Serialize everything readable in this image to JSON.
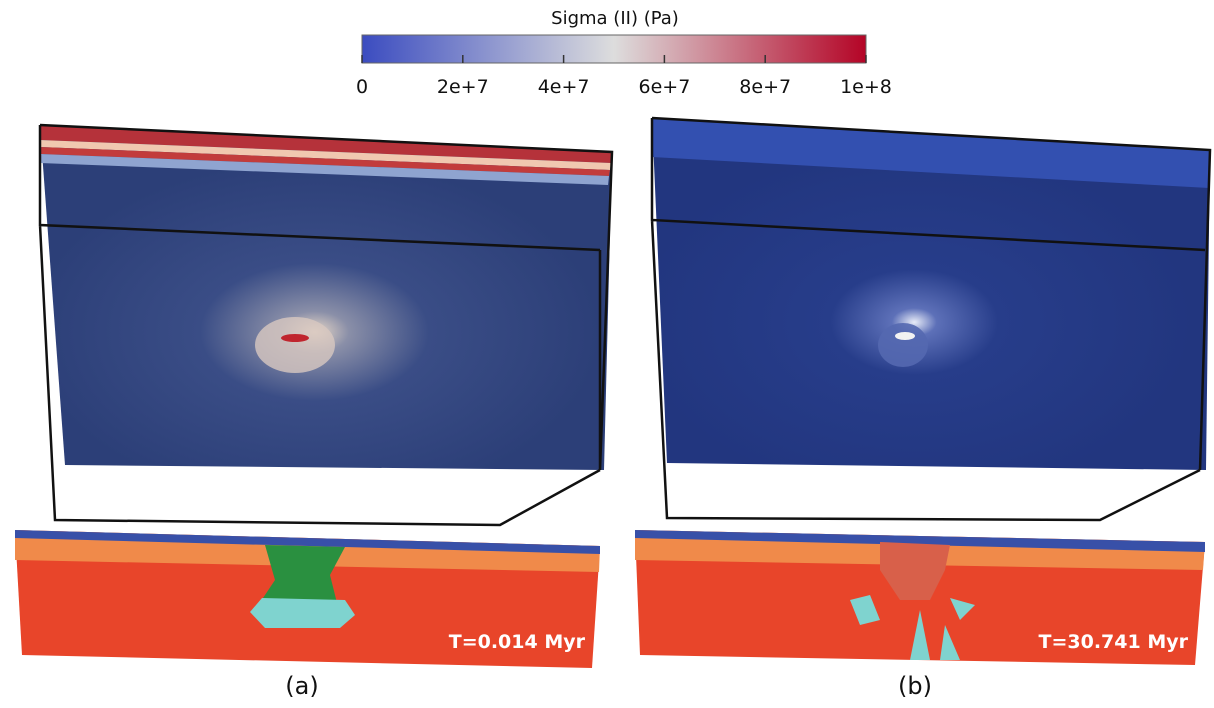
{
  "colorbar": {
    "title": "Sigma (II) (Pa)",
    "range": [
      0,
      100000000
    ],
    "colormap": [
      "#3b4cc0",
      "#dddddd",
      "#b40426"
    ],
    "ticks": [
      0,
      {
        "value": 20000000,
        "label": "2e+7"
      },
      {
        "value": 40000000,
        "label": "4e+7"
      },
      {
        "value": 60000000,
        "label": "6e+7"
      },
      {
        "value": 80000000,
        "label": "8e+7"
      },
      {
        "value": 100000000,
        "label": "1e+8"
      }
    ]
  },
  "panels": [
    {
      "label": "(a)",
      "time": "T=0.014 Myr"
    },
    {
      "label": "(b)",
      "time": "T=30.741 Myr"
    }
  ]
}
